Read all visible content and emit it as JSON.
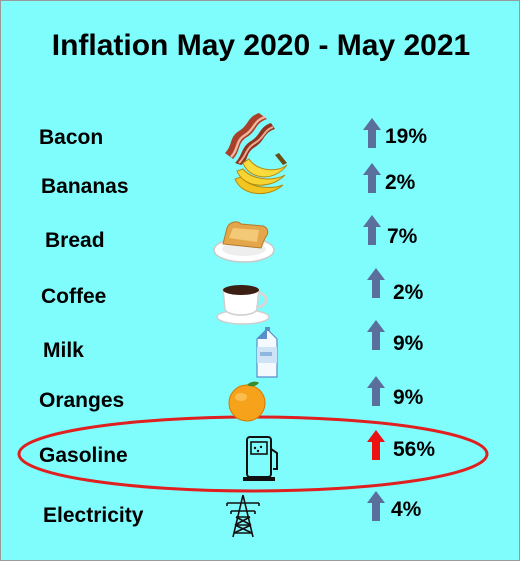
{
  "chart_data": {
    "type": "table",
    "title": "Inflation May 2020 - May 2021",
    "items": [
      {
        "name": "Bacon",
        "icon": "bacon-icon",
        "value": 19,
        "label": "19%",
        "arrow_color": "#5b6f9c"
      },
      {
        "name": "Bananas",
        "icon": "bananas-icon",
        "value": 2,
        "label": "2%",
        "arrow_color": "#5b6f9c"
      },
      {
        "name": "Bread",
        "icon": "bread-icon",
        "value": 7,
        "label": "7%",
        "arrow_color": "#5b6f9c"
      },
      {
        "name": "Coffee",
        "icon": "coffee-icon",
        "value": 2,
        "label": "2%",
        "arrow_color": "#5b6f9c"
      },
      {
        "name": "Milk",
        "icon": "milk-icon",
        "value": 9,
        "label": "9%",
        "arrow_color": "#5b6f9c"
      },
      {
        "name": "Oranges",
        "icon": "orange-icon",
        "value": 9,
        "label": "9%",
        "arrow_color": "#5b6f9c"
      },
      {
        "name": "Gasoline",
        "icon": "gas-pump-icon",
        "value": 56,
        "label": "56%",
        "arrow_color": "#ee1111",
        "highlighted": true
      },
      {
        "name": "Electricity",
        "icon": "power-tower-icon",
        "value": 4,
        "label": "4%",
        "arrow_color": "#5b6f9c"
      }
    ],
    "background_color": "#7ffcfc",
    "highlight_color": "#e02020"
  }
}
